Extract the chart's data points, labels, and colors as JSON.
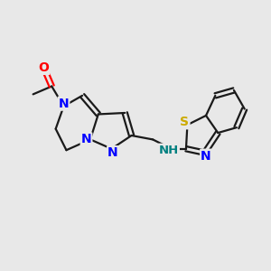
{
  "bg_color": "#e8e8e8",
  "bond_color": "#1a1a1a",
  "N_color": "#0000ff",
  "O_color": "#ff0000",
  "S_color": "#ccaa00",
  "NH_color": "#008080",
  "line_width": 1.6,
  "figsize": [
    3.0,
    3.0
  ],
  "dpi": 100,
  "xlim": [
    0,
    10
  ],
  "ylim": [
    0,
    10
  ]
}
